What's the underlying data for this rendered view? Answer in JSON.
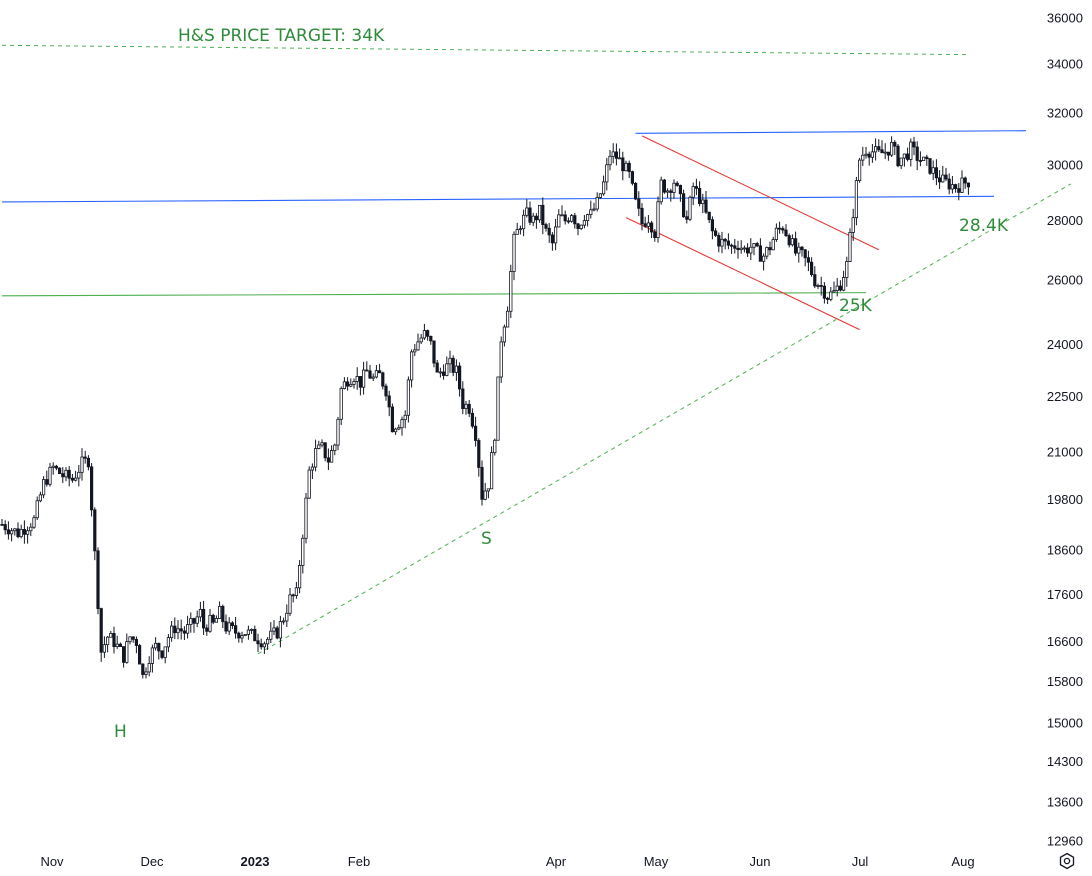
{
  "chart_data": {
    "type": "candlestick",
    "scale": "log",
    "ylim": [
      12960,
      36000
    ],
    "y_ticks": [
      "36000",
      "34000",
      "32000",
      "30000",
      "28000",
      "26000",
      "24000",
      "22500",
      "21000",
      "19800",
      "18600",
      "17600",
      "16600",
      "15800",
      "15000",
      "14300",
      "13600",
      "12960"
    ],
    "x_ticks": [
      {
        "label": "Nov",
        "bold": false
      },
      {
        "label": "Dec",
        "bold": false
      },
      {
        "label": "2023",
        "bold": true
      },
      {
        "label": "Feb",
        "bold": false
      },
      {
        "label": "Apr",
        "bold": false
      },
      {
        "label": "May",
        "bold": false
      },
      {
        "label": "Jun",
        "bold": false
      },
      {
        "label": "Jul",
        "bold": false
      },
      {
        "label": "Aug",
        "bold": false
      }
    ],
    "anchors": [
      [
        0,
        19200
      ],
      [
        5,
        19000
      ],
      [
        10,
        19300
      ],
      [
        13,
        20200
      ],
      [
        16,
        20600
      ],
      [
        19,
        20400
      ],
      [
        22,
        20300
      ],
      [
        25,
        20700
      ],
      [
        27,
        20800
      ],
      [
        29,
        18500
      ],
      [
        31,
        16400
      ],
      [
        33,
        16700
      ],
      [
        35,
        16600
      ],
      [
        38,
        16300
      ],
      [
        40,
        16700
      ],
      [
        42,
        16600
      ],
      [
        44,
        15900
      ],
      [
        46,
        16300
      ],
      [
        48,
        16500
      ],
      [
        50,
        16400
      ],
      [
        52,
        16700
      ],
      [
        54,
        16900
      ],
      [
        57,
        16800
      ],
      [
        60,
        17000
      ],
      [
        62,
        17200
      ],
      [
        63,
        16900
      ],
      [
        65,
        17000
      ],
      [
        66,
        16950
      ],
      [
        68,
        17200
      ],
      [
        70,
        16900
      ],
      [
        73,
        16800
      ],
      [
        76,
        16800
      ],
      [
        79,
        16700
      ],
      [
        82,
        16600
      ],
      [
        84,
        16700
      ],
      [
        86,
        16800
      ],
      [
        88,
        17100
      ],
      [
        90,
        17500
      ],
      [
        92,
        17600
      ],
      [
        94,
        19000
      ],
      [
        96,
        20500
      ],
      [
        98,
        21000
      ],
      [
        100,
        21100
      ],
      [
        102,
        20800
      ],
      [
        104,
        21200
      ],
      [
        106,
        22700
      ],
      [
        108,
        23000
      ],
      [
        110,
        23100
      ],
      [
        112,
        22900
      ],
      [
        114,
        23200
      ],
      [
        116,
        23000
      ],
      [
        118,
        23100
      ],
      [
        120,
        22700
      ],
      [
        122,
        21700
      ],
      [
        124,
        21800
      ],
      [
        126,
        22000
      ],
      [
        128,
        23800
      ],
      [
        130,
        24100
      ],
      [
        132,
        24300
      ],
      [
        134,
        24000
      ],
      [
        136,
        23100
      ],
      [
        138,
        23300
      ],
      [
        140,
        23400
      ],
      [
        142,
        23200
      ],
      [
        144,
        22300
      ],
      [
        146,
        22200
      ],
      [
        148,
        21500
      ],
      [
        150,
        19900
      ],
      [
        152,
        20200
      ],
      [
        154,
        21500
      ],
      [
        156,
        24200
      ],
      [
        158,
        25200
      ],
      [
        160,
        27300
      ],
      [
        162,
        27900
      ],
      [
        164,
        28200
      ],
      [
        166,
        28000
      ],
      [
        168,
        28300
      ],
      [
        170,
        27600
      ],
      [
        172,
        27200
      ],
      [
        174,
        28100
      ],
      [
        176,
        28000
      ],
      [
        178,
        28300
      ],
      [
        180,
        27800
      ],
      [
        182,
        28200
      ],
      [
        184,
        28200
      ],
      [
        186,
        28600
      ],
      [
        188,
        29300
      ],
      [
        190,
        30400
      ],
      [
        192,
        30300
      ],
      [
        194,
        30000
      ],
      [
        196,
        29600
      ],
      [
        198,
        28600
      ],
      [
        200,
        27900
      ],
      [
        202,
        28100
      ],
      [
        204,
        27600
      ],
      [
        206,
        29300
      ],
      [
        208,
        29100
      ],
      [
        210,
        29400
      ],
      [
        212,
        28700
      ],
      [
        214,
        28000
      ],
      [
        216,
        29200
      ],
      [
        218,
        28800
      ],
      [
        220,
        28200
      ],
      [
        222,
        27600
      ],
      [
        224,
        27300
      ],
      [
        226,
        27200
      ],
      [
        228,
        27100
      ],
      [
        230,
        27200
      ],
      [
        232,
        27000
      ],
      [
        234,
        27100
      ],
      [
        236,
        26900
      ],
      [
        238,
        26800
      ],
      [
        240,
        27100
      ],
      [
        242,
        27600
      ],
      [
        244,
        27800
      ],
      [
        246,
        27400
      ],
      [
        248,
        26900
      ],
      [
        250,
        26800
      ],
      [
        252,
        26500
      ],
      [
        254,
        26000
      ],
      [
        256,
        25800
      ],
      [
        258,
        25500
      ],
      [
        260,
        25600
      ],
      [
        262,
        25900
      ],
      [
        264,
        26500
      ],
      [
        266,
        28300
      ],
      [
        268,
        30200
      ],
      [
        270,
        30600
      ],
      [
        272,
        30500
      ],
      [
        274,
        30400
      ],
      [
        276,
        30500
      ],
      [
        278,
        30700
      ],
      [
        280,
        30200
      ],
      [
        282,
        30300
      ],
      [
        284,
        30600
      ],
      [
        286,
        30300
      ],
      [
        288,
        30100
      ],
      [
        290,
        29900
      ],
      [
        292,
        29600
      ],
      [
        294,
        29400
      ],
      [
        296,
        29300
      ],
      [
        298,
        29200
      ],
      [
        300,
        29300
      ],
      [
        302,
        29400
      ]
    ],
    "lines": [
      {
        "name": "hs-target",
        "kind": "dashed",
        "color": "#4caf50",
        "points": [
          [
            0,
            34800
          ],
          [
            302,
            34400
          ]
        ]
      },
      {
        "name": "resistance-top",
        "kind": "solid",
        "color": "#2962ff",
        "points": [
          [
            198,
            31200
          ],
          [
            320,
            31300
          ]
        ]
      },
      {
        "name": "resistance-mid",
        "kind": "solid",
        "color": "#2962ff",
        "points": [
          [
            0,
            28650
          ],
          [
            310,
            28850
          ]
        ]
      },
      {
        "name": "support-25k",
        "kind": "solid",
        "color": "#4caf50",
        "points": [
          [
            0,
            25500
          ],
          [
            270,
            25600
          ]
        ]
      },
      {
        "name": "channel-upper",
        "kind": "solid",
        "color": "#e53935",
        "points": [
          [
            200,
            31100
          ],
          [
            274,
            27000
          ]
        ]
      },
      {
        "name": "channel-lower",
        "kind": "solid",
        "color": "#e53935",
        "points": [
          [
            195,
            28100
          ],
          [
            268,
            24450
          ]
        ]
      },
      {
        "name": "trendline",
        "kind": "dashed",
        "color": "#4caf50",
        "points": [
          [
            80,
            16350
          ],
          [
            334,
            29300
          ]
        ]
      }
    ],
    "annotations": [
      {
        "name": "hs-target-label",
        "text": "H&S PRICE TARGET: 34K"
      },
      {
        "name": "label-28k",
        "text": "28.4K"
      },
      {
        "name": "label-25k",
        "text": "25K"
      },
      {
        "name": "label-s",
        "text": "S"
      },
      {
        "name": "label-h",
        "text": "H"
      }
    ]
  },
  "colors": {
    "candle": "#131722",
    "annotation": "#2e8b3a",
    "background": "#ffffff"
  },
  "ui": {
    "settings_icon": "settings-icon"
  }
}
